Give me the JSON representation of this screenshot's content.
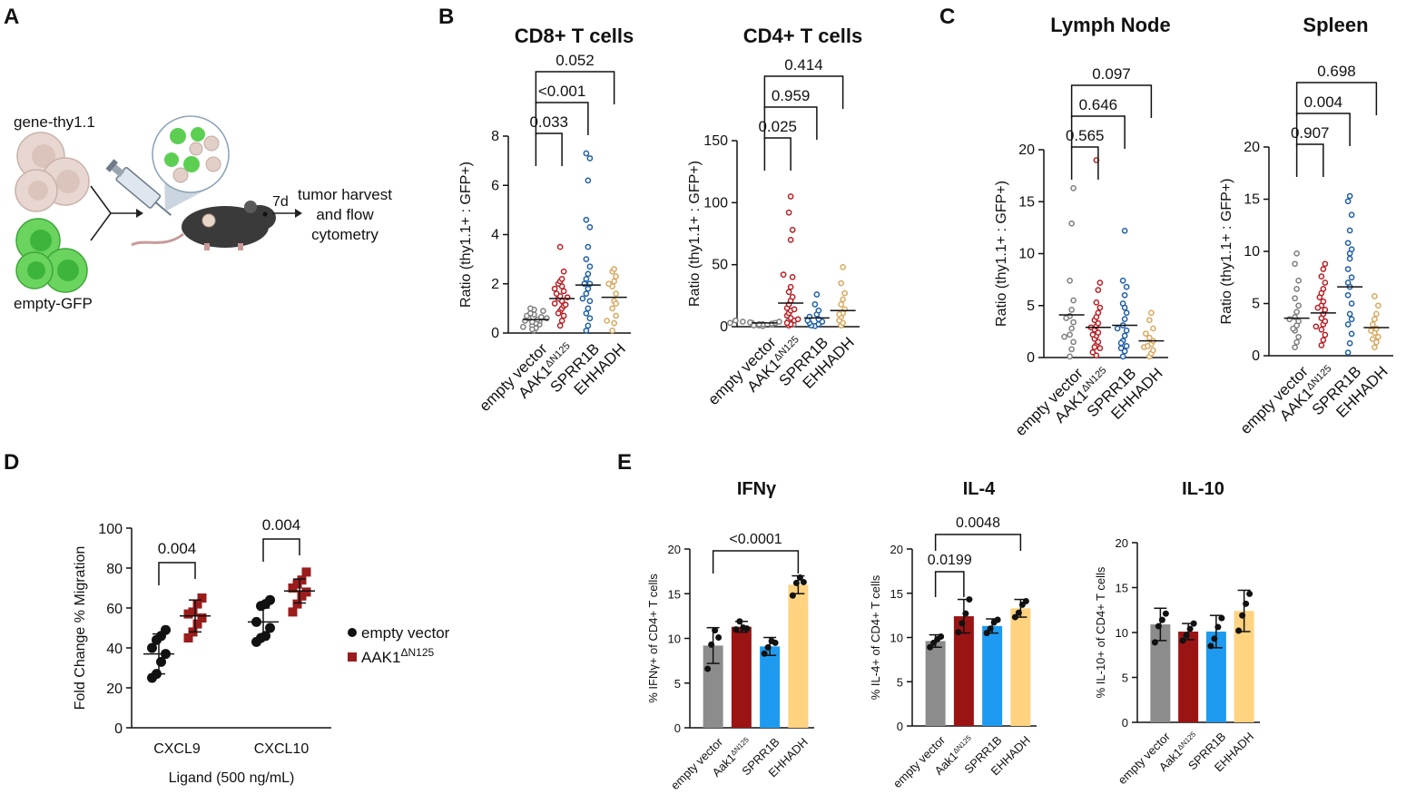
{
  "colors": {
    "gray": "#7f7f7f",
    "red": "#b81f25",
    "blue": "#1f5fa6",
    "gold": "#d9a860",
    "green": "#4cc44a",
    "thy": "#e9d9d3",
    "darkred": "#9b1c1c",
    "barGray": "#8c8c8c",
    "barRed": "#9b1414",
    "barBlue": "#1e9bf0",
    "barYellow": "#ffd37f"
  },
  "panelA": {
    "label": "A",
    "gene_label": "gene-thy1.1",
    "gfp_label": "empty-GFP",
    "days": "7d",
    "harvest_lines": [
      "tumor harvest",
      "and flow",
      "cytometry"
    ]
  },
  "panelB": {
    "label": "B",
    "ylabel": "Ratio (thy1.1+ : GFP+)",
    "categories": [
      "empty vector",
      "AAK1",
      "SPRR1B",
      "EHHADH"
    ],
    "superscript": "ΔN125"
  },
  "panelC": {
    "label": "C",
    "ylabel": "Ratio (thy1.1+ : GFP+)",
    "categories": [
      "empty vector",
      "AAK1",
      "SPRR1B",
      "EHHADH"
    ],
    "superscript": "ΔN125"
  },
  "panelD": {
    "label": "D",
    "legend": [
      {
        "label": "empty vector",
        "sup": ""
      },
      {
        "label": "AAK1",
        "sup": "ΔN125"
      }
    ]
  },
  "panelE": {
    "label": "E",
    "categories": [
      "empty vector",
      "Aak1",
      "SPRR1B",
      "EHHADH"
    ],
    "superscript": "ΔN125"
  },
  "chart_data": [
    {
      "id": "B1",
      "type": "scatter",
      "title": "CD8+ T cells",
      "ylabel": "Ratio (thy1.1+ : GFP+)",
      "ylim": [
        0,
        8
      ],
      "yticks": [
        0,
        2,
        4,
        6,
        8
      ],
      "categories": [
        "empty vector",
        "AAK1ΔN125",
        "SPRR1B",
        "EHHADH"
      ],
      "medians": [
        0.55,
        1.4,
        1.95,
        1.45
      ],
      "series": [
        {
          "name": "empty vector",
          "values": [
            0.1,
            0.2,
            0.3,
            0.35,
            0.4,
            0.45,
            0.5,
            0.5,
            0.55,
            0.6,
            0.65,
            0.7,
            0.75,
            0.8,
            0.9,
            0.95,
            1.0,
            0.15,
            0.25,
            0.6
          ]
        },
        {
          "name": "AAK1ΔN125",
          "values": [
            0.3,
            0.5,
            0.7,
            0.9,
            1.0,
            1.1,
            1.2,
            1.3,
            1.4,
            1.5,
            1.6,
            1.7,
            1.8,
            1.9,
            2.0,
            2.1,
            2.2,
            2.5,
            3.5,
            1.45,
            0.8,
            1.15
          ]
        },
        {
          "name": "SPRR1B",
          "values": [
            0.1,
            0.3,
            0.6,
            0.8,
            1.0,
            1.3,
            1.6,
            1.8,
            2.0,
            2.2,
            2.4,
            2.7,
            3.0,
            3.5,
            4.3,
            4.6,
            6.2,
            7.1,
            7.3,
            1.4,
            2.0
          ]
        },
        {
          "name": "EHHADH",
          "values": [
            0.1,
            0.4,
            0.7,
            1.0,
            1.3,
            1.6,
            1.9,
            2.1,
            2.3,
            2.5,
            2.6,
            1.2,
            0.5,
            2.0
          ]
        }
      ],
      "brackets": [
        {
          "from": 0,
          "to": 1,
          "label": "0.033"
        },
        {
          "from": 0,
          "to": 2,
          "label": "<0.001"
        },
        {
          "from": 0,
          "to": 3,
          "label": "0.052"
        }
      ]
    },
    {
      "id": "B2",
      "type": "scatter",
      "title": "CD4+ T cells",
      "ylabel": "Ratio (thy1.1+ : GFP+)",
      "ylim": [
        0,
        150
      ],
      "yticks": [
        0,
        50,
        100,
        150
      ],
      "categories": [
        "empty vector",
        "AAK1ΔN125",
        "SPRR1B",
        "EHHADH"
      ],
      "medians": [
        3,
        19,
        7,
        13
      ],
      "series": [
        {
          "name": "empty vector",
          "values": [
            0.5,
            1,
            1.5,
            2,
            2,
            2.5,
            3,
            3,
            3.5,
            4,
            4,
            4.5,
            5,
            1,
            2,
            3
          ]
        },
        {
          "name": "AAK1ΔN125",
          "values": [
            1,
            2,
            3,
            5,
            7,
            9,
            11,
            13,
            15,
            18,
            21,
            24,
            28,
            32,
            40,
            42,
            70,
            78,
            92,
            105,
            6,
            14
          ]
        },
        {
          "name": "SPRR1B",
          "values": [
            0.5,
            1,
            2,
            3,
            4,
            6,
            8,
            10,
            13,
            18,
            26,
            5
          ]
        },
        {
          "name": "EHHADH",
          "values": [
            1,
            3,
            5,
            8,
            11,
            14,
            18,
            22,
            27,
            35,
            48,
            10
          ]
        }
      ],
      "brackets": [
        {
          "from": 0,
          "to": 1,
          "label": "0.025"
        },
        {
          "from": 0,
          "to": 2,
          "label": "0.959"
        },
        {
          "from": 0,
          "to": 3,
          "label": "0.414"
        }
      ]
    },
    {
      "id": "C1",
      "type": "scatter",
      "title": "Lymph Node",
      "ylabel": "Ratio (thy1.1+ : GFP+)",
      "ylim": [
        0,
        20
      ],
      "yticks": [
        0,
        5,
        10,
        15,
        20
      ],
      "categories": [
        "empty vector",
        "AAK1ΔN125",
        "SPRR1B",
        "EHHADH"
      ],
      "medians": [
        4.1,
        2.9,
        3.1,
        1.6
      ],
      "series": [
        {
          "name": "empty vector",
          "values": [
            0.1,
            0.8,
            1.5,
            2.2,
            2.8,
            3.4,
            4.0,
            4.6,
            5.5,
            7.4,
            12.9,
            16.3,
            2.0,
            3.8
          ]
        },
        {
          "name": "AAK1ΔN125",
          "values": [
            0.2,
            0.5,
            0.9,
            1.2,
            1.5,
            1.8,
            2.1,
            2.4,
            2.7,
            3.0,
            3.3,
            3.6,
            3.9,
            4.3,
            4.8,
            5.3,
            6.5,
            7.2,
            19.0,
            2.2,
            1.0,
            2.9
          ]
        },
        {
          "name": "SPRR1B",
          "values": [
            0.1,
            0.6,
            1.1,
            1.6,
            2.1,
            2.6,
            3.1,
            3.7,
            4.3,
            5.2,
            6.0,
            6.8,
            7.4,
            12.2,
            1.4,
            2.8,
            4.8,
            0.9
          ]
        },
        {
          "name": "EHHADH",
          "values": [
            0.1,
            0.4,
            0.7,
            1.0,
            1.3,
            1.6,
            1.9,
            2.3,
            2.8,
            3.6,
            4.3,
            1.1
          ]
        }
      ],
      "brackets": [
        {
          "from": 0,
          "to": 1,
          "label": "0.565"
        },
        {
          "from": 0,
          "to": 2,
          "label": "0.646"
        },
        {
          "from": 0,
          "to": 3,
          "label": "0.097"
        }
      ]
    },
    {
      "id": "C2",
      "type": "scatter",
      "title": "Spleen",
      "ylabel": "Ratio (thy1.1+ : GFP+)",
      "ylim": [
        0,
        20
      ],
      "yticks": [
        0,
        5,
        10,
        15,
        20
      ],
      "categories": [
        "empty vector",
        "AAK1ΔN125",
        "SPRR1B",
        "EHHADH"
      ],
      "medians": [
        3.6,
        4.1,
        6.6,
        2.7
      ],
      "series": [
        {
          "name": "empty vector",
          "values": [
            0.8,
            1.3,
            1.8,
            2.4,
            2.9,
            3.3,
            3.7,
            4.2,
            4.8,
            5.5,
            6.4,
            7.2,
            8.8,
            9.8,
            2.6,
            3.5
          ]
        },
        {
          "name": "AAK1ΔN125",
          "values": [
            1.0,
            1.5,
            2.0,
            2.5,
            3.0,
            3.3,
            3.6,
            4.0,
            4.4,
            4.8,
            5.2,
            5.6,
            6.0,
            6.4,
            7.0,
            7.6,
            8.3,
            8.8,
            2.8,
            4.6
          ]
        },
        {
          "name": "SPRR1B",
          "values": [
            0.3,
            1.2,
            2.1,
            3.0,
            4.0,
            5.0,
            5.8,
            6.6,
            7.5,
            8.3,
            9.3,
            10.2,
            10.8,
            12.0,
            13.5,
            14.8,
            15.3,
            3.5,
            7.0,
            9.8
          ]
        },
        {
          "name": "EHHADH",
          "values": [
            0.8,
            1.3,
            1.8,
            2.2,
            2.6,
            3.0,
            3.5,
            4.0,
            4.8,
            5.7,
            2.4,
            1.6
          ]
        }
      ],
      "brackets": [
        {
          "from": 0,
          "to": 1,
          "label": "0.907"
        },
        {
          "from": 0,
          "to": 2,
          "label": "0.004"
        },
        {
          "from": 0,
          "to": 3,
          "label": "0.698"
        }
      ]
    },
    {
      "id": "D",
      "type": "scatter",
      "title": "",
      "xlabel": "Ligand (500 ng/mL)",
      "ylabel": "Fold Change % Migration",
      "ylim": [
        0,
        100
      ],
      "yticks": [
        0,
        20,
        40,
        60,
        80,
        100
      ],
      "categories": [
        "CXCL9",
        "CXCL10"
      ],
      "series": [
        {
          "name": "empty vector",
          "CXCL9": [
            25,
            27,
            33,
            37,
            40,
            44,
            46,
            49
          ],
          "CXCL10": [
            43,
            45,
            46,
            50,
            53,
            61,
            62,
            64
          ],
          "mean": [
            37,
            53
          ],
          "sd": [
            10,
            7
          ]
        },
        {
          "name": "AAK1ΔN125",
          "CXCL9": [
            45,
            48,
            52,
            55,
            57,
            58,
            62,
            65
          ],
          "CXCL10": [
            58,
            62,
            66,
            68,
            70,
            72,
            74,
            78
          ],
          "mean": [
            56,
            68.5
          ],
          "sd": [
            8,
            6
          ]
        }
      ],
      "brackets": [
        {
          "category": 0,
          "label": "0.004"
        },
        {
          "category": 1,
          "label": "0.004"
        }
      ]
    },
    {
      "id": "E1",
      "type": "bar",
      "title": "IFNγ",
      "ylabel": "% IFNγ+ of CD4+ T cells",
      "ylim": [
        0,
        20
      ],
      "yticks": [
        0,
        5,
        10,
        15,
        20
      ],
      "categories": [
        "empty vector",
        "Aak1ΔN125",
        "SPRR1B",
        "EHHADH"
      ],
      "values": [
        9.2,
        11.3,
        9.1,
        16.0
      ],
      "errors": [
        2.0,
        0.6,
        1.0,
        1.0
      ],
      "points": [
        [
          6.6,
          9.3,
          10.9,
          10.1
        ],
        [
          11.0,
          11.9,
          11.2,
          11.1
        ],
        [
          8.3,
          9.0,
          9.7,
          9.5
        ],
        [
          14.8,
          16.2,
          16.8,
          16.3
        ]
      ],
      "brackets": [
        {
          "from": 0,
          "to": 3,
          "label": "<0.0001"
        }
      ]
    },
    {
      "id": "E2",
      "type": "bar",
      "title": "IL-4",
      "ylabel": "% IL-4+ of CD4+ T cells",
      "ylim": [
        0,
        20
      ],
      "yticks": [
        0,
        5,
        10,
        15,
        20
      ],
      "categories": [
        "empty vector",
        "Aak1ΔN125",
        "SPRR1B",
        "EHHADH"
      ],
      "values": [
        9.6,
        12.4,
        11.3,
        13.3
      ],
      "errors": [
        0.7,
        1.9,
        0.8,
        1.0
      ],
      "points": [
        [
          8.9,
          9.4,
          9.8,
          10.1
        ],
        [
          10.6,
          11.6,
          12.7,
          14.3
        ],
        [
          10.5,
          11.0,
          11.7,
          12.0
        ],
        [
          12.3,
          12.8,
          13.7,
          14.1
        ]
      ],
      "brackets": [
        {
          "from": 0,
          "to": 1,
          "label": "0.0199"
        },
        {
          "from": 0,
          "to": 3,
          "label": "0.0048"
        }
      ]
    },
    {
      "id": "E3",
      "type": "bar",
      "title": "IL-10",
      "ylabel": "% IL-10+ of CD4+ T cells",
      "ylim": [
        0,
        20
      ],
      "yticks": [
        0,
        5,
        10,
        15,
        20
      ],
      "categories": [
        "empty vector",
        "Aak1ΔN125",
        "SPRR1B",
        "EHHADH"
      ],
      "values": [
        10.9,
        10.1,
        10.1,
        12.4
      ],
      "errors": [
        1.8,
        0.9,
        1.8,
        2.3
      ],
      "points": [
        [
          8.9,
          10.7,
          11.4,
          12.1
        ],
        [
          9.1,
          9.7,
          10.4,
          11.0
        ],
        [
          8.5,
          9.3,
          10.6,
          11.6
        ],
        [
          10.2,
          11.9,
          13.2,
          14.3
        ]
      ],
      "brackets": []
    }
  ]
}
